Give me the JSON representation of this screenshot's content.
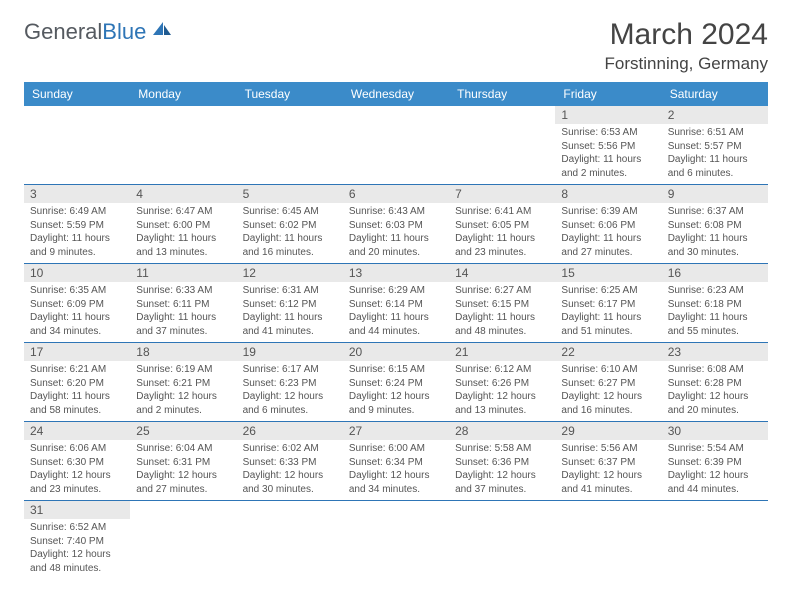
{
  "logo": {
    "text_a": "General",
    "text_b": "Blue"
  },
  "title": "March 2024",
  "location": "Forstinning, Germany",
  "colors": {
    "header_bg": "#3b8bc9",
    "header_fg": "#ffffff",
    "row_divider": "#2e75b6",
    "daynum_bg": "#e9e9e9",
    "logo_gray": "#555a60",
    "logo_blue": "#2e75b6"
  },
  "weekdays": [
    "Sunday",
    "Monday",
    "Tuesday",
    "Wednesday",
    "Thursday",
    "Friday",
    "Saturday"
  ],
  "weeks": [
    [
      null,
      null,
      null,
      null,
      null,
      {
        "n": "1",
        "sunrise": "Sunrise: 6:53 AM",
        "sunset": "Sunset: 5:56 PM",
        "day": "Daylight: 11 hours and 2 minutes."
      },
      {
        "n": "2",
        "sunrise": "Sunrise: 6:51 AM",
        "sunset": "Sunset: 5:57 PM",
        "day": "Daylight: 11 hours and 6 minutes."
      }
    ],
    [
      {
        "n": "3",
        "sunrise": "Sunrise: 6:49 AM",
        "sunset": "Sunset: 5:59 PM",
        "day": "Daylight: 11 hours and 9 minutes."
      },
      {
        "n": "4",
        "sunrise": "Sunrise: 6:47 AM",
        "sunset": "Sunset: 6:00 PM",
        "day": "Daylight: 11 hours and 13 minutes."
      },
      {
        "n": "5",
        "sunrise": "Sunrise: 6:45 AM",
        "sunset": "Sunset: 6:02 PM",
        "day": "Daylight: 11 hours and 16 minutes."
      },
      {
        "n": "6",
        "sunrise": "Sunrise: 6:43 AM",
        "sunset": "Sunset: 6:03 PM",
        "day": "Daylight: 11 hours and 20 minutes."
      },
      {
        "n": "7",
        "sunrise": "Sunrise: 6:41 AM",
        "sunset": "Sunset: 6:05 PM",
        "day": "Daylight: 11 hours and 23 minutes."
      },
      {
        "n": "8",
        "sunrise": "Sunrise: 6:39 AM",
        "sunset": "Sunset: 6:06 PM",
        "day": "Daylight: 11 hours and 27 minutes."
      },
      {
        "n": "9",
        "sunrise": "Sunrise: 6:37 AM",
        "sunset": "Sunset: 6:08 PM",
        "day": "Daylight: 11 hours and 30 minutes."
      }
    ],
    [
      {
        "n": "10",
        "sunrise": "Sunrise: 6:35 AM",
        "sunset": "Sunset: 6:09 PM",
        "day": "Daylight: 11 hours and 34 minutes."
      },
      {
        "n": "11",
        "sunrise": "Sunrise: 6:33 AM",
        "sunset": "Sunset: 6:11 PM",
        "day": "Daylight: 11 hours and 37 minutes."
      },
      {
        "n": "12",
        "sunrise": "Sunrise: 6:31 AM",
        "sunset": "Sunset: 6:12 PM",
        "day": "Daylight: 11 hours and 41 minutes."
      },
      {
        "n": "13",
        "sunrise": "Sunrise: 6:29 AM",
        "sunset": "Sunset: 6:14 PM",
        "day": "Daylight: 11 hours and 44 minutes."
      },
      {
        "n": "14",
        "sunrise": "Sunrise: 6:27 AM",
        "sunset": "Sunset: 6:15 PM",
        "day": "Daylight: 11 hours and 48 minutes."
      },
      {
        "n": "15",
        "sunrise": "Sunrise: 6:25 AM",
        "sunset": "Sunset: 6:17 PM",
        "day": "Daylight: 11 hours and 51 minutes."
      },
      {
        "n": "16",
        "sunrise": "Sunrise: 6:23 AM",
        "sunset": "Sunset: 6:18 PM",
        "day": "Daylight: 11 hours and 55 minutes."
      }
    ],
    [
      {
        "n": "17",
        "sunrise": "Sunrise: 6:21 AM",
        "sunset": "Sunset: 6:20 PM",
        "day": "Daylight: 11 hours and 58 minutes."
      },
      {
        "n": "18",
        "sunrise": "Sunrise: 6:19 AM",
        "sunset": "Sunset: 6:21 PM",
        "day": "Daylight: 12 hours and 2 minutes."
      },
      {
        "n": "19",
        "sunrise": "Sunrise: 6:17 AM",
        "sunset": "Sunset: 6:23 PM",
        "day": "Daylight: 12 hours and 6 minutes."
      },
      {
        "n": "20",
        "sunrise": "Sunrise: 6:15 AM",
        "sunset": "Sunset: 6:24 PM",
        "day": "Daylight: 12 hours and 9 minutes."
      },
      {
        "n": "21",
        "sunrise": "Sunrise: 6:12 AM",
        "sunset": "Sunset: 6:26 PM",
        "day": "Daylight: 12 hours and 13 minutes."
      },
      {
        "n": "22",
        "sunrise": "Sunrise: 6:10 AM",
        "sunset": "Sunset: 6:27 PM",
        "day": "Daylight: 12 hours and 16 minutes."
      },
      {
        "n": "23",
        "sunrise": "Sunrise: 6:08 AM",
        "sunset": "Sunset: 6:28 PM",
        "day": "Daylight: 12 hours and 20 minutes."
      }
    ],
    [
      {
        "n": "24",
        "sunrise": "Sunrise: 6:06 AM",
        "sunset": "Sunset: 6:30 PM",
        "day": "Daylight: 12 hours and 23 minutes."
      },
      {
        "n": "25",
        "sunrise": "Sunrise: 6:04 AM",
        "sunset": "Sunset: 6:31 PM",
        "day": "Daylight: 12 hours and 27 minutes."
      },
      {
        "n": "26",
        "sunrise": "Sunrise: 6:02 AM",
        "sunset": "Sunset: 6:33 PM",
        "day": "Daylight: 12 hours and 30 minutes."
      },
      {
        "n": "27",
        "sunrise": "Sunrise: 6:00 AM",
        "sunset": "Sunset: 6:34 PM",
        "day": "Daylight: 12 hours and 34 minutes."
      },
      {
        "n": "28",
        "sunrise": "Sunrise: 5:58 AM",
        "sunset": "Sunset: 6:36 PM",
        "day": "Daylight: 12 hours and 37 minutes."
      },
      {
        "n": "29",
        "sunrise": "Sunrise: 5:56 AM",
        "sunset": "Sunset: 6:37 PM",
        "day": "Daylight: 12 hours and 41 minutes."
      },
      {
        "n": "30",
        "sunrise": "Sunrise: 5:54 AM",
        "sunset": "Sunset: 6:39 PM",
        "day": "Daylight: 12 hours and 44 minutes."
      }
    ],
    [
      {
        "n": "31",
        "sunrise": "Sunrise: 6:52 AM",
        "sunset": "Sunset: 7:40 PM",
        "day": "Daylight: 12 hours and 48 minutes."
      },
      null,
      null,
      null,
      null,
      null,
      null
    ]
  ]
}
